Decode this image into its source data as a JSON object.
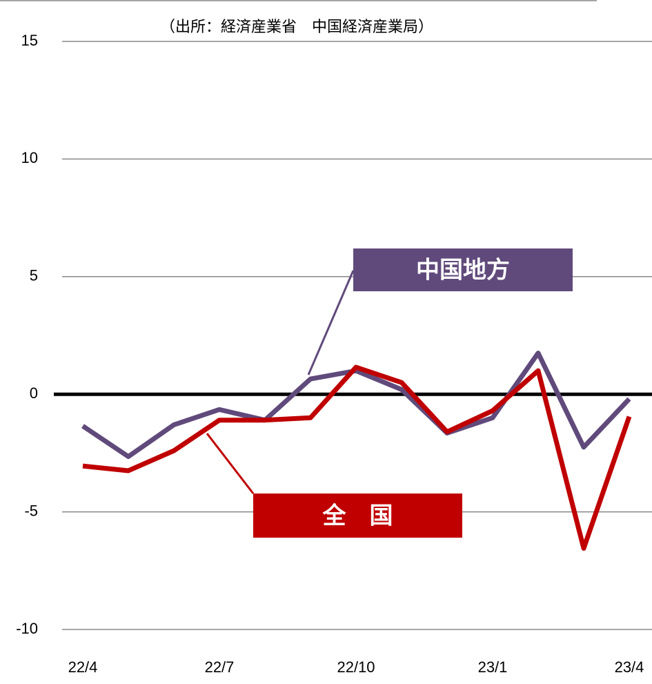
{
  "chart_data": {
    "type": "line",
    "title": "（出所：経済産業省　中国経済産業局）",
    "categories": [
      "22/4",
      null,
      null,
      "22/7",
      null,
      null,
      "22/10",
      null,
      null,
      "23/1",
      null,
      null,
      "23/4"
    ],
    "series": [
      {
        "name": "全　国",
        "color": "#c00000",
        "values": [
          -3.05,
          -3.25,
          -2.4,
          -1.1,
          -1.1,
          -1.0,
          1.15,
          0.5,
          -1.6,
          -0.7,
          1.0,
          -6.55,
          -0.95
        ]
      },
      {
        "name": "中国地方",
        "color": "#604a7b",
        "values": [
          -1.35,
          -2.65,
          -1.3,
          -0.65,
          -1.1,
          0.65,
          1.0,
          0.2,
          -1.65,
          -1.0,
          1.75,
          -2.25,
          -0.2
        ]
      }
    ],
    "ylim": [
      -10,
      15
    ],
    "yticks": [
      15,
      10,
      5,
      0,
      -5,
      -10
    ],
    "grid": true
  }
}
